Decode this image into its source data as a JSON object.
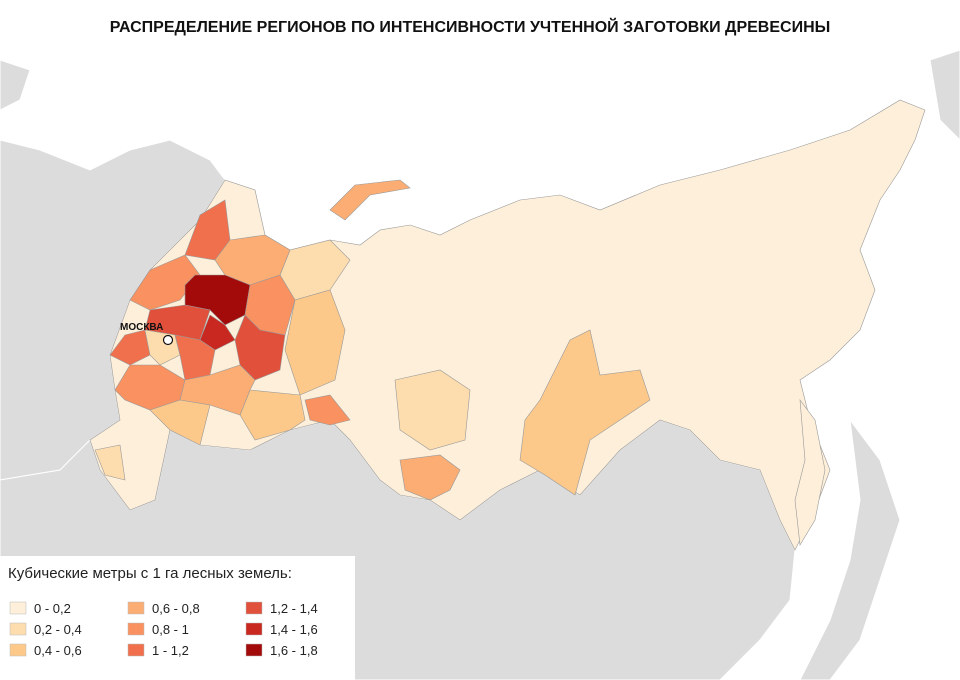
{
  "title": "РАСПРЕДЕЛЕНИЕ РЕГИОНОВ ПО ИНТЕНСИВНОСТИ УЧТЕННОЙ ЗАГОТОВКИ ДРЕВЕСИНЫ",
  "city": {
    "label": "МОСКВА"
  },
  "legend": {
    "title": "Кубические метры с 1 га лесных земель:",
    "items": [
      {
        "label": "0 - 0,2",
        "color": "#fdefd9"
      },
      {
        "label": "0,2 - 0,4",
        "color": "#fddcae"
      },
      {
        "label": "0,4 - 0,6",
        "color": "#fdc98a"
      },
      {
        "label": "0,6 - 0,8",
        "color": "#fcad74"
      },
      {
        "label": "0,8 - 1",
        "color": "#f99160"
      },
      {
        "label": "1 - 1,2",
        "color": "#f0704d"
      },
      {
        "label": "1,2 - 1,4",
        "color": "#e0503b"
      },
      {
        "label": "1,4 - 1,6",
        "color": "#c8281f"
      },
      {
        "label": "1,6 - 1,8",
        "color": "#a30b0b"
      }
    ]
  }
}
